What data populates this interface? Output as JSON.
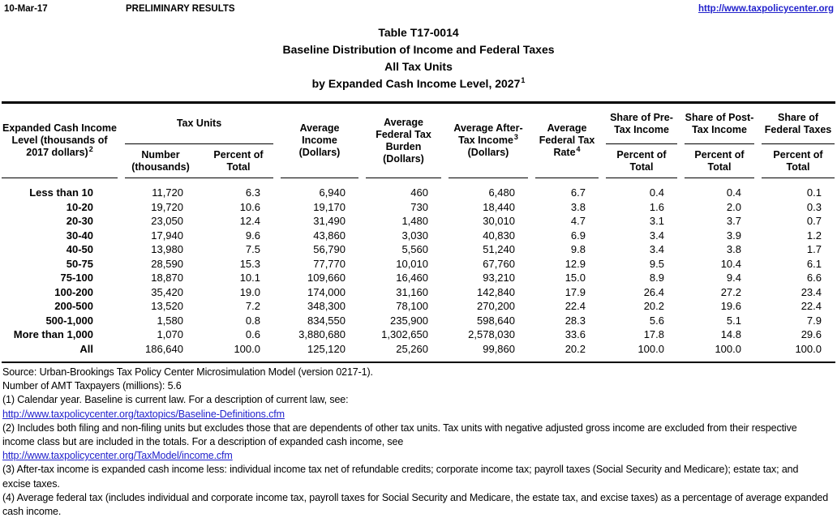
{
  "topbar": {
    "date": "10-Mar-17",
    "status": "PRELIMINARY RESULTS",
    "link": "http://www.taxpolicycenter.org"
  },
  "title": {
    "line1": "Table T17-0014",
    "line2": "Baseline Distribution of Income and Federal Taxes",
    "line3": "All Tax Units",
    "line4": "by Expanded Cash Income Level, 2027",
    "line4_note": "1"
  },
  "table": {
    "header": {
      "income_level": "Expanded Cash Income Level (thousands of 2017 dollars)",
      "income_level_note": "2",
      "tax_units_group": "Tax Units",
      "number_sub": "Number (thousands)",
      "percent_sub": "Percent of Total",
      "avg_income": "Average Income (Dollars)",
      "avg_burden": "Average Federal Tax Burden (Dollars)",
      "after_tax": "Average After-Tax Income",
      "after_tax_note": "3",
      "after_tax_unit": "(Dollars)",
      "rate": "Average Federal Tax Rate",
      "rate_note": "4",
      "share_pre": "Share of Pre-Tax Income",
      "share_post": "Share of Post-Tax Income",
      "share_fed": "Share of Federal Taxes",
      "share_sub": "Percent of Total"
    },
    "rows": [
      {
        "label": "Less than 10",
        "values": [
          "11,720",
          "6.3",
          "6,940",
          "460",
          "6,480",
          "6.7",
          "0.4",
          "0.4",
          "0.1"
        ]
      },
      {
        "label": "10-20",
        "values": [
          "19,720",
          "10.6",
          "19,170",
          "730",
          "18,440",
          "3.8",
          "1.6",
          "2.0",
          "0.3"
        ]
      },
      {
        "label": "20-30",
        "values": [
          "23,050",
          "12.4",
          "31,490",
          "1,480",
          "30,010",
          "4.7",
          "3.1",
          "3.7",
          "0.7"
        ]
      },
      {
        "label": "30-40",
        "values": [
          "17,940",
          "9.6",
          "43,860",
          "3,030",
          "40,830",
          "6.9",
          "3.4",
          "3.9",
          "1.2"
        ]
      },
      {
        "label": "40-50",
        "values": [
          "13,980",
          "7.5",
          "56,790",
          "5,560",
          "51,240",
          "9.8",
          "3.4",
          "3.8",
          "1.7"
        ]
      },
      {
        "label": "50-75",
        "values": [
          "28,590",
          "15.3",
          "77,770",
          "10,010",
          "67,760",
          "12.9",
          "9.5",
          "10.4",
          "6.1"
        ]
      },
      {
        "label": "75-100",
        "values": [
          "18,870",
          "10.1",
          "109,660",
          "16,460",
          "93,210",
          "15.0",
          "8.9",
          "9.4",
          "6.6"
        ]
      },
      {
        "label": "100-200",
        "values": [
          "35,420",
          "19.0",
          "174,000",
          "31,160",
          "142,840",
          "17.9",
          "26.4",
          "27.2",
          "23.4"
        ]
      },
      {
        "label": "200-500",
        "values": [
          "13,520",
          "7.2",
          "348,300",
          "78,100",
          "270,200",
          "22.4",
          "20.2",
          "19.6",
          "22.4"
        ]
      },
      {
        "label": "500-1,000",
        "values": [
          "1,580",
          "0.8",
          "834,550",
          "235,900",
          "598,640",
          "28.3",
          "5.6",
          "5.1",
          "7.9"
        ]
      },
      {
        "label": "More than 1,000",
        "values": [
          "1,070",
          "0.6",
          "3,880,680",
          "1,302,650",
          "2,578,030",
          "33.6",
          "17.8",
          "14.8",
          "29.6"
        ]
      },
      {
        "label": "All",
        "values": [
          "186,640",
          "100.0",
          "125,120",
          "25,260",
          "99,860",
          "20.2",
          "100.0",
          "100.0",
          "100.0"
        ]
      }
    ]
  },
  "footnotes": [
    {
      "kind": "text",
      "text": "Source: Urban-Brookings Tax Policy Center Microsimulation Model (version 0217-1)."
    },
    {
      "kind": "text",
      "text": "Number of AMT Taxpayers (millions): 5.6"
    },
    {
      "kind": "text",
      "text": "(1) Calendar year. Baseline is current law. For a description of current law, see:"
    },
    {
      "kind": "link",
      "text": "http://www.taxpolicycenter.org/taxtopics/Baseline-Definitions.cfm"
    },
    {
      "kind": "text",
      "text": "(2) Includes both filing and non-filing units but excludes those that are dependents of other tax units. Tax units with negative adjusted gross income are excluded from their respective"
    },
    {
      "kind": "text",
      "text": "income class but are included in the totals. For a description of expanded cash income, see"
    },
    {
      "kind": "link",
      "text": "http://www.taxpolicycenter.org/TaxModel/income.cfm"
    },
    {
      "kind": "text",
      "text": "(3) After-tax income is expanded cash income less: individual income tax net of refundable credits; corporate income tax; payroll taxes (Social Security and Medicare); estate tax; and"
    },
    {
      "kind": "text",
      "text": "excise taxes."
    },
    {
      "kind": "text",
      "text": "(4) Average federal tax (includes individual and corporate income tax, payroll taxes for Social Security and Medicare, the estate tax, and excise taxes) as a percentage of average expanded"
    },
    {
      "kind": "text",
      "text": "cash income."
    }
  ],
  "colors": {
    "link_blue": "#2222CC"
  }
}
